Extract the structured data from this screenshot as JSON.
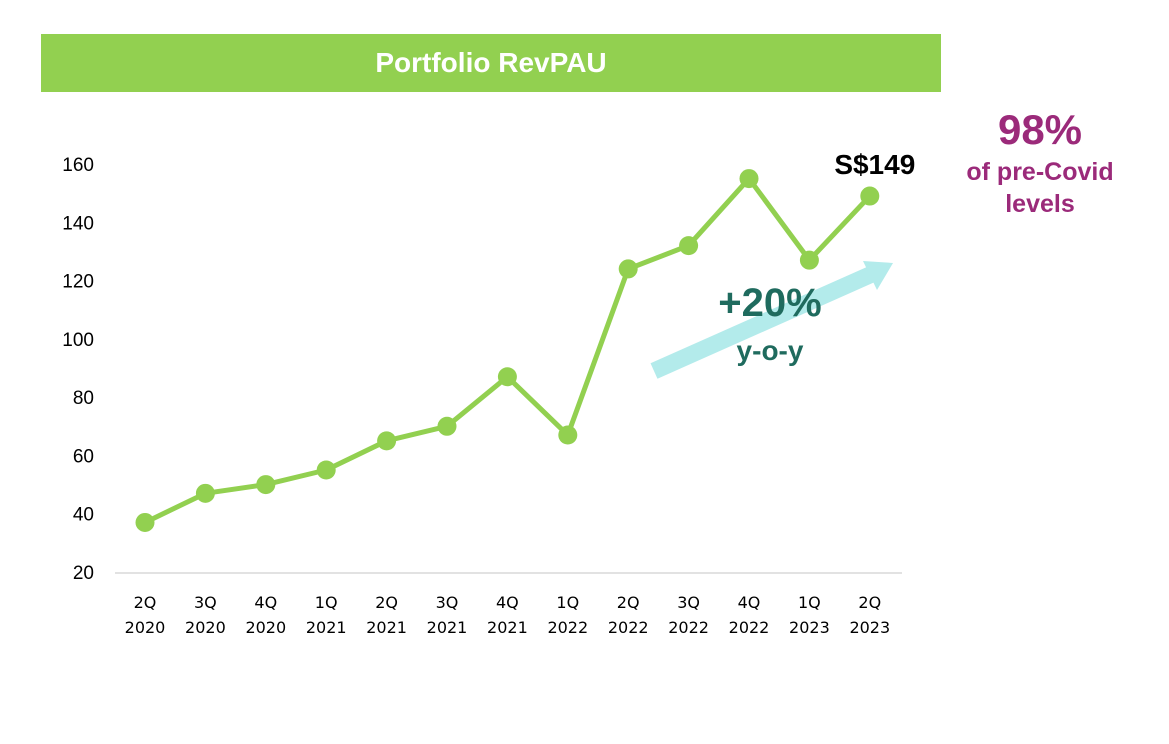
{
  "colors": {
    "title_bg": "#92d050",
    "line": "#92d050",
    "arrow": "#b3ebeb",
    "yoy_text": "#1f6b5e",
    "precovid_text": "#9b2a7a",
    "axis": "#d9d9d9"
  },
  "chart_data": {
    "type": "line",
    "title": "Portfolio RevPAU",
    "categories": [
      [
        "2Q",
        "2020"
      ],
      [
        "3Q",
        "2020"
      ],
      [
        "4Q",
        "2020"
      ],
      [
        "1Q",
        "2021"
      ],
      [
        "2Q",
        "2021"
      ],
      [
        "3Q",
        "2021"
      ],
      [
        "4Q",
        "2021"
      ],
      [
        "1Q",
        "2022"
      ],
      [
        "2Q",
        "2022"
      ],
      [
        "3Q",
        "2022"
      ],
      [
        "4Q",
        "2022"
      ],
      [
        "1Q",
        "2023"
      ],
      [
        "2Q",
        "2023"
      ]
    ],
    "values": [
      37,
      47,
      50,
      55,
      65,
      70,
      87,
      67,
      124,
      132,
      155,
      127,
      149
    ],
    "ylim": [
      20,
      160
    ],
    "yticks": [
      20,
      40,
      60,
      80,
      100,
      120,
      140,
      160
    ],
    "grid": false,
    "data_label": "S$149",
    "annotations": {
      "yoy_main": "+20%",
      "yoy_sub": "y-o-y"
    }
  },
  "callout": {
    "headline": "98%",
    "line1": "of pre-Covid",
    "line2": "levels"
  }
}
